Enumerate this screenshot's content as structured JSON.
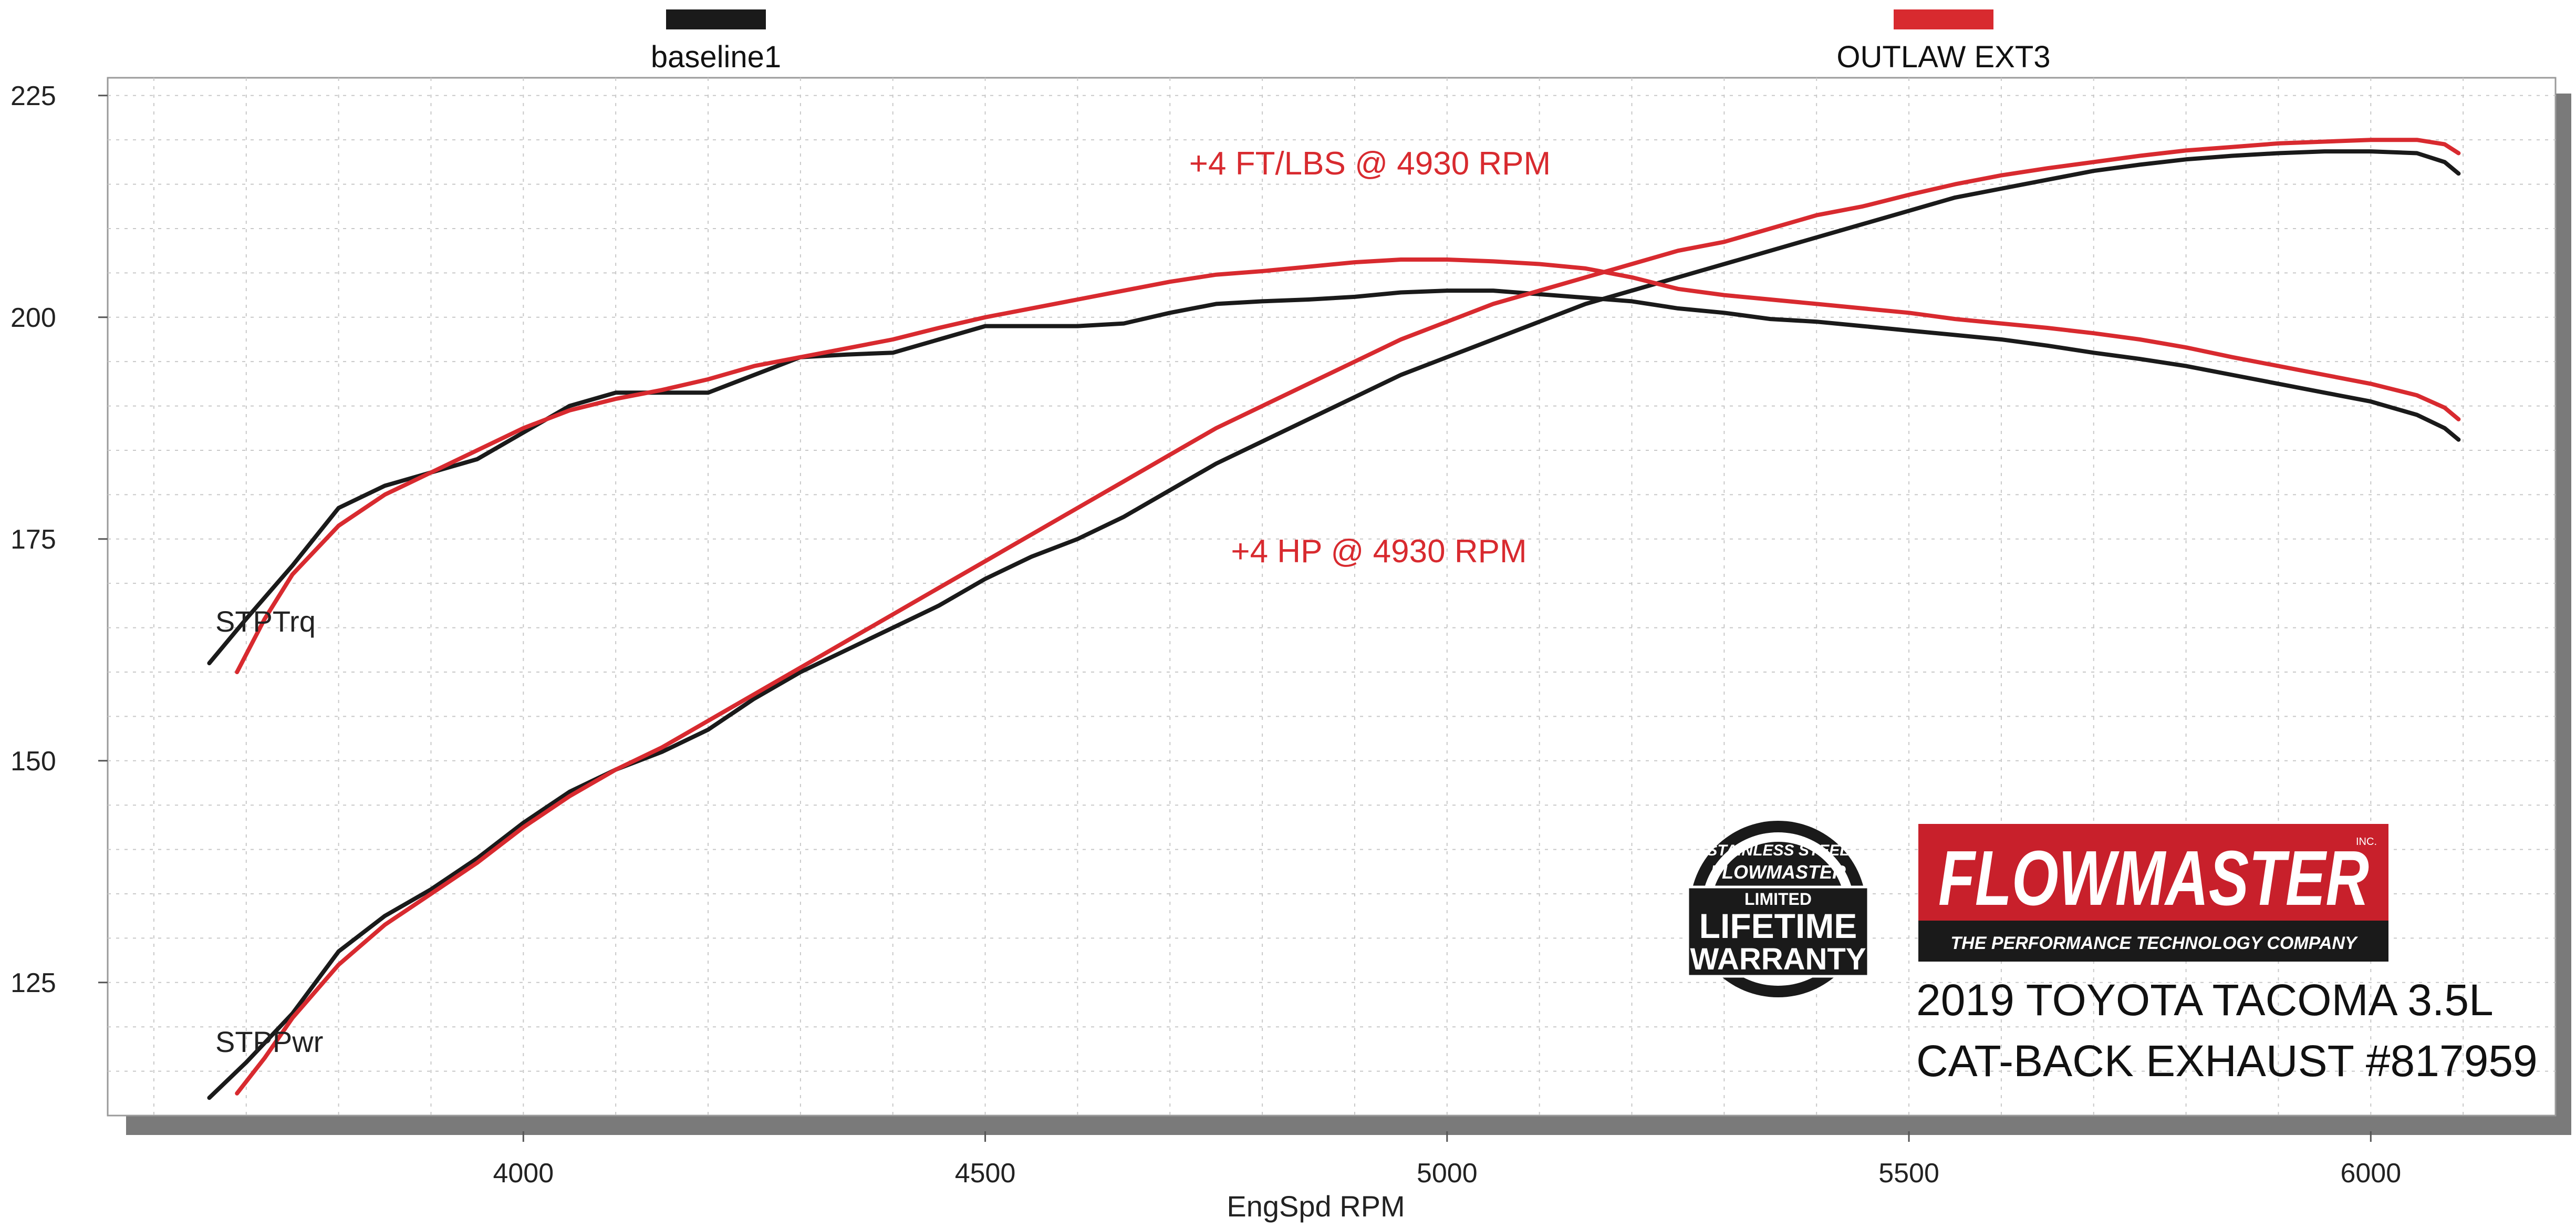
{
  "chart_data": {
    "type": "line",
    "xlabel": "EngSpd  RPM",
    "ylabel": "",
    "xlim": [
      3550,
      6200
    ],
    "ylim": [
      110,
      227
    ],
    "x_ticks": [
      4000,
      4500,
      5000,
      5500,
      6000
    ],
    "y_ticks": [
      125,
      150,
      175,
      200,
      225
    ],
    "grid": true,
    "legend": {
      "placement": "top",
      "entries": [
        "baseline1",
        "OUTLAW EXT3"
      ]
    },
    "series": [
      {
        "name": "baseline1",
        "measure": "STPTrq",
        "color": "#1a1a1a",
        "x": [
          3660,
          3700,
          3750,
          3800,
          3850,
          3900,
          3950,
          4000,
          4050,
          4100,
          4150,
          4200,
          4250,
          4300,
          4350,
          4400,
          4450,
          4500,
          4550,
          4600,
          4650,
          4700,
          4750,
          4800,
          4850,
          4900,
          4950,
          5000,
          5050,
          5100,
          5150,
          5200,
          5250,
          5300,
          5350,
          5400,
          5450,
          5500,
          5550,
          5600,
          5650,
          5700,
          5750,
          5800,
          5850,
          5900,
          5950,
          6000,
          6050,
          6080,
          6095
        ],
        "values": [
          161,
          166,
          172,
          178.5,
          181,
          182.5,
          184,
          187,
          190,
          191.5,
          191.5,
          191.5,
          193.5,
          195.5,
          195.8,
          196,
          197.5,
          199,
          199,
          199,
          199.3,
          200.5,
          201.5,
          201.8,
          202,
          202.3,
          202.8,
          203,
          203,
          202.6,
          202.2,
          201.8,
          201,
          200.5,
          199.8,
          199.5,
          199,
          198.5,
          198,
          197.5,
          196.8,
          196,
          195.3,
          194.5,
          193.5,
          192.5,
          191.5,
          190.5,
          189,
          187.5,
          186.2
        ]
      },
      {
        "name": "OUTLAW EXT3",
        "measure": "STPTrq",
        "color": "#d82a2f",
        "x": [
          3690,
          3720,
          3750,
          3800,
          3850,
          3900,
          3950,
          4000,
          4050,
          4100,
          4150,
          4200,
          4250,
          4300,
          4350,
          4400,
          4450,
          4500,
          4550,
          4600,
          4650,
          4700,
          4750,
          4800,
          4850,
          4900,
          4950,
          5000,
          5050,
          5100,
          5150,
          5200,
          5250,
          5300,
          5350,
          5400,
          5450,
          5500,
          5550,
          5600,
          5650,
          5700,
          5750,
          5800,
          5850,
          5900,
          5950,
          6000,
          6050,
          6080,
          6095
        ],
        "values": [
          160,
          166,
          171,
          176.5,
          180,
          182.5,
          185,
          187.5,
          189.5,
          190.8,
          191.8,
          193,
          194.5,
          195.5,
          196.5,
          197.5,
          198.8,
          200,
          201,
          202,
          203,
          204,
          204.8,
          205.2,
          205.7,
          206.2,
          206.5,
          206.5,
          206.3,
          206,
          205.5,
          204.5,
          203.2,
          202.5,
          202,
          201.5,
          201,
          200.5,
          199.8,
          199.3,
          198.8,
          198.2,
          197.5,
          196.6,
          195.5,
          194.5,
          193.5,
          192.5,
          191.2,
          189.8,
          188.5
        ]
      },
      {
        "name": "baseline1",
        "measure": "STPPwr",
        "color": "#1a1a1a",
        "x": [
          3660,
          3700,
          3750,
          3800,
          3850,
          3900,
          3950,
          4000,
          4050,
          4100,
          4150,
          4200,
          4250,
          4300,
          4350,
          4400,
          4450,
          4500,
          4550,
          4600,
          4650,
          4700,
          4750,
          4800,
          4850,
          4900,
          4950,
          5000,
          5050,
          5100,
          5150,
          5200,
          5250,
          5300,
          5350,
          5400,
          5450,
          5500,
          5550,
          5600,
          5650,
          5700,
          5750,
          5800,
          5850,
          5900,
          5950,
          6000,
          6050,
          6080,
          6095
        ],
        "values": [
          112,
          116,
          121.5,
          128.5,
          132.5,
          135.5,
          139,
          143,
          146.5,
          149,
          151,
          153.5,
          157,
          160,
          162.5,
          165,
          167.5,
          170.5,
          173,
          175,
          177.5,
          180.5,
          183.5,
          186,
          188.5,
          191,
          193.5,
          195.5,
          197.5,
          199.5,
          201.5,
          203,
          204.5,
          206,
          207.5,
          209,
          210.5,
          212,
          213.5,
          214.5,
          215.5,
          216.5,
          217.2,
          217.8,
          218.2,
          218.5,
          218.7,
          218.7,
          218.5,
          217.5,
          216.2
        ]
      },
      {
        "name": "OUTLAW EXT3",
        "measure": "STPPwr",
        "color": "#d82a2f",
        "x": [
          3690,
          3720,
          3750,
          3800,
          3850,
          3900,
          3950,
          4000,
          4050,
          4100,
          4150,
          4200,
          4250,
          4300,
          4350,
          4400,
          4450,
          4500,
          4550,
          4600,
          4650,
          4700,
          4750,
          4800,
          4850,
          4900,
          4950,
          5000,
          5050,
          5100,
          5150,
          5200,
          5250,
          5300,
          5350,
          5400,
          5450,
          5500,
          5550,
          5600,
          5650,
          5700,
          5750,
          5800,
          5850,
          5900,
          5950,
          6000,
          6050,
          6080,
          6095
        ],
        "values": [
          112.5,
          116.5,
          121,
          127,
          131.5,
          135,
          138.5,
          142.5,
          146,
          149,
          151.5,
          154.5,
          157.5,
          160.5,
          163.5,
          166.5,
          169.5,
          172.5,
          175.5,
          178.5,
          181.5,
          184.5,
          187.5,
          190,
          192.5,
          195,
          197.5,
          199.5,
          201.5,
          203,
          204.5,
          206,
          207.5,
          208.5,
          210,
          211.5,
          212.5,
          213.8,
          215,
          216,
          216.8,
          217.5,
          218.2,
          218.8,
          219.2,
          219.6,
          219.8,
          220,
          220,
          219.5,
          218.5
        ]
      }
    ],
    "series_tags": {
      "torque": "STPTrq",
      "power": "STPPwr"
    },
    "annotations": {
      "torque_gain": "+4 FT/LBS @ 4930 RPM",
      "power_gain": "+4 HP @ 4930 RPM"
    }
  },
  "branding": {
    "warranty_badge": [
      "STAINLESS STEEL",
      "FLOWMASTER",
      "LIMITED",
      "LIFETIME",
      "WARRANTY"
    ],
    "logo_name": "FLOWMASTER",
    "logo_inc": "INC.",
    "logo_tagline": "THE PERFORMANCE TECHNOLOGY COMPANY"
  },
  "caption": {
    "line1": "2019 TOYOTA TACOMA 3.5L",
    "line2": "CAT-BACK EXHAUST #817959"
  },
  "colors": {
    "baseline": "#1a1a1a",
    "outlaw": "#d82a2f",
    "grid": "#c8c8c8",
    "frame_shadow": "#7a7a7a",
    "logo_red": "#c8202b"
  }
}
